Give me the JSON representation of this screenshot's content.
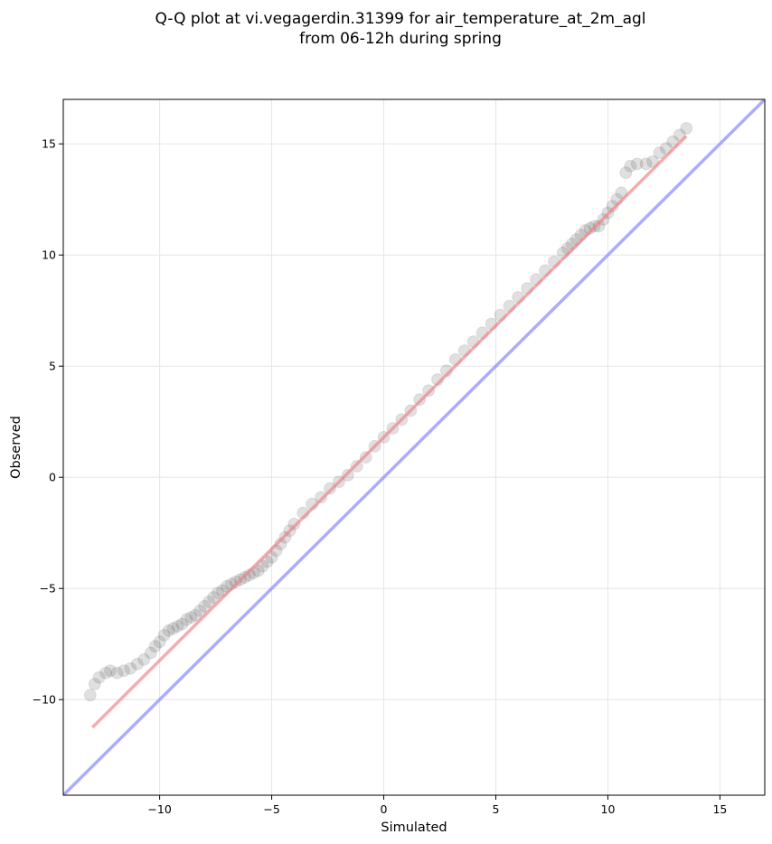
{
  "chart_data": {
    "type": "scatter",
    "title": [
      "Q-Q plot at vi.vegagerdin.31399 for air_temperature_at_2m_agl",
      "from 06-12h during spring"
    ],
    "xlabel": "Simulated",
    "ylabel": "Observed",
    "xlim": [
      -14.3,
      17.0
    ],
    "ylim": [
      -14.3,
      17.0
    ],
    "xticks": [
      -10,
      -5,
      0,
      5,
      10,
      15
    ],
    "yticks": [
      -10,
      -5,
      0,
      5,
      10,
      15
    ],
    "xtick_labels": [
      "−10",
      "−5",
      "0",
      "5",
      "10",
      "15"
    ],
    "ytick_labels": [
      "−10",
      "−5",
      "0",
      "5",
      "10",
      "15"
    ],
    "grid": true,
    "quantile_points": {
      "x": [
        -13.1,
        -12.9,
        -12.7,
        -12.4,
        -12.2,
        -11.9,
        -11.6,
        -11.3,
        -11.0,
        -10.7,
        -10.4,
        -10.2,
        -10.0,
        -9.8,
        -9.6,
        -9.4,
        -9.2,
        -9.0,
        -8.8,
        -8.6,
        -8.4,
        -8.2,
        -8.0,
        -7.8,
        -7.6,
        -7.4,
        -7.2,
        -7.0,
        -6.8,
        -6.6,
        -6.4,
        -6.2,
        -6.0,
        -5.8,
        -5.6,
        -5.4,
        -5.2,
        -5.0,
        -4.8,
        -4.6,
        -4.4,
        -4.2,
        -4.0,
        -3.6,
        -3.2,
        -2.8,
        -2.4,
        -2.0,
        -1.6,
        -1.2,
        -0.8,
        -0.4,
        0.0,
        0.4,
        0.8,
        1.2,
        1.6,
        2.0,
        2.4,
        2.8,
        3.2,
        3.6,
        4.0,
        4.4,
        4.8,
        5.2,
        5.6,
        6.0,
        6.4,
        6.8,
        7.2,
        7.6,
        8.0,
        8.2,
        8.4,
        8.6,
        8.8,
        9.0,
        9.2,
        9.4,
        9.6,
        9.8,
        10.0,
        10.2,
        10.4,
        10.6,
        10.8,
        11.0,
        11.3,
        11.7,
        12.0,
        12.3,
        12.6,
        12.9,
        13.2,
        13.5
      ],
      "y": [
        -9.8,
        -9.3,
        -9.0,
        -8.8,
        -8.7,
        -8.8,
        -8.7,
        -8.6,
        -8.4,
        -8.2,
        -7.9,
        -7.6,
        -7.4,
        -7.1,
        -6.9,
        -6.8,
        -6.7,
        -6.6,
        -6.4,
        -6.3,
        -6.2,
        -6.0,
        -5.8,
        -5.6,
        -5.4,
        -5.2,
        -5.1,
        -4.9,
        -4.8,
        -4.7,
        -4.6,
        -4.5,
        -4.4,
        -4.3,
        -4.2,
        -4.0,
        -3.8,
        -3.6,
        -3.3,
        -3.0,
        -2.7,
        -2.4,
        -2.1,
        -1.6,
        -1.2,
        -0.9,
        -0.5,
        -0.2,
        0.1,
        0.5,
        0.9,
        1.4,
        1.8,
        2.2,
        2.6,
        3.0,
        3.5,
        3.9,
        4.4,
        4.8,
        5.3,
        5.7,
        6.1,
        6.5,
        6.9,
        7.3,
        7.7,
        8.1,
        8.5,
        8.9,
        9.3,
        9.7,
        10.1,
        10.3,
        10.5,
        10.7,
        10.9,
        11.1,
        11.2,
        11.3,
        11.3,
        11.6,
        11.9,
        12.2,
        12.5,
        12.8,
        13.7,
        14.0,
        14.1,
        14.1,
        14.2,
        14.6,
        14.8,
        15.1,
        15.4,
        15.7
      ]
    },
    "fit_line": {
      "x": [
        -13.0,
        13.5
      ],
      "y": [
        -11.25,
        15.35
      ]
    },
    "reference_line": {
      "x": [
        -14.3,
        17.0
      ],
      "y": [
        -14.3,
        17.0
      ]
    },
    "colors": {
      "points": "#555555",
      "fit_line": "#f08080",
      "reference_line": "#8080ff",
      "grid": "#e6e6e6",
      "axes": "#000000"
    }
  }
}
